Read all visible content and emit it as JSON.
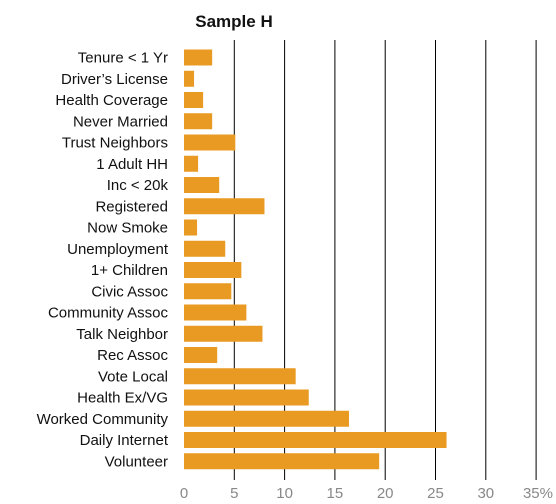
{
  "chart_data": {
    "type": "bar",
    "orientation": "horizontal",
    "title": "Sample H",
    "xlabel": "",
    "ylabel": "",
    "xlim": [
      0,
      35
    ],
    "x_ticks": [
      "0",
      "5",
      "10",
      "15",
      "20",
      "25",
      "30",
      "35%"
    ],
    "grid": "vertical",
    "bar_color": "#E89A22",
    "grid_color": "#000000",
    "categories": [
      "Tenure < 1 Yr",
      "Driver’s License",
      "Health Coverage",
      "Never Married",
      "Trust Neighbors",
      "1 Adult HH",
      "Inc < 20k",
      "Registered",
      "Now Smoke",
      "Unemployment",
      "1+ Children",
      "Civic Assoc",
      "Community Assoc",
      "Talk Neighbor",
      "Rec Assoc",
      "Vote Local",
      "Health Ex/VG",
      "Worked Community",
      "Daily Internet",
      "Volunteer"
    ],
    "values": [
      2.8,
      1.0,
      1.9,
      2.8,
      5.1,
      1.4,
      3.5,
      8.0,
      1.3,
      4.1,
      5.7,
      4.7,
      6.2,
      7.8,
      3.3,
      11.1,
      12.4,
      16.4,
      26.1,
      19.4
    ]
  }
}
